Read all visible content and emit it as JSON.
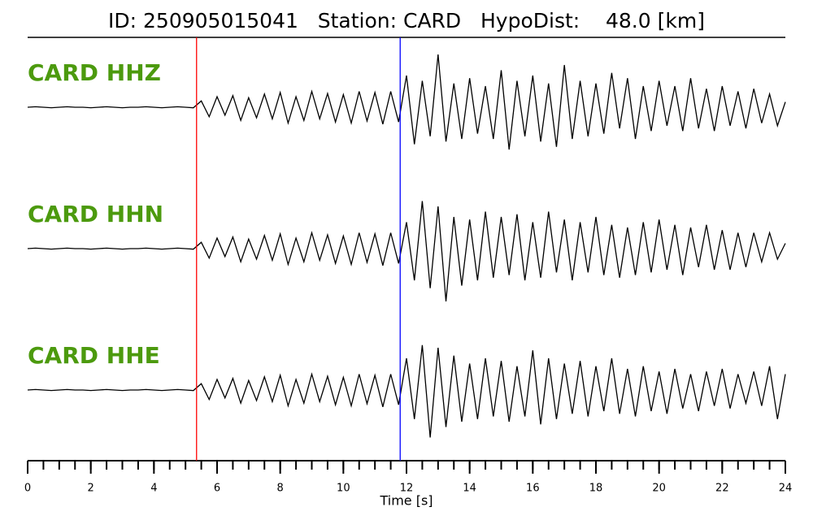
{
  "chart_data": {
    "type": "seismogram",
    "title": "ID: 250905015041   Station: CARD   HypoDist:    48.0 [km]",
    "xlabel": "Time [s]",
    "xlim": [
      0,
      24
    ],
    "xticks": [
      0,
      2,
      4,
      6,
      8,
      10,
      12,
      14,
      16,
      18,
      20,
      22,
      24
    ],
    "xminorticks": [
      0,
      0.5,
      1,
      1.5,
      2,
      2.5,
      3,
      3.5,
      4,
      4.5,
      5,
      5.5,
      6,
      6.5,
      7,
      7.5,
      8,
      8.5,
      9,
      9.5,
      10,
      10.5,
      11,
      11.5,
      12,
      12.5,
      13,
      13.5,
      14,
      14.5,
      15,
      15.5,
      16,
      16.5,
      17,
      17.5,
      18,
      18.5,
      19,
      19.5,
      20,
      20.5,
      21,
      21.5,
      22,
      22.5,
      23,
      23.5,
      24
    ],
    "label_color": "#4c9a0e",
    "picks": [
      {
        "time": 5.35,
        "color": "#ff0000"
      },
      {
        "time": 11.8,
        "color": "#0000ff"
      }
    ],
    "x": [
      0,
      0.25,
      0.5,
      0.75,
      1,
      1.25,
      1.5,
      1.75,
      2,
      2.25,
      2.5,
      2.75,
      3,
      3.25,
      3.5,
      3.75,
      4,
      4.25,
      4.5,
      4.75,
      5,
      5.25,
      5.5,
      5.75,
      6,
      6.25,
      6.5,
      6.75,
      7,
      7.25,
      7.5,
      7.75,
      8,
      8.25,
      8.5,
      8.75,
      9,
      9.25,
      9.5,
      9.75,
      10,
      10.25,
      10.5,
      10.75,
      11,
      11.25,
      11.5,
      11.75,
      12,
      12.25,
      12.5,
      12.75,
      13,
      13.25,
      13.5,
      13.75,
      14,
      14.25,
      14.5,
      14.75,
      15,
      15.25,
      15.5,
      15.75,
      16,
      16.25,
      16.5,
      16.75,
      17,
      17.25,
      17.5,
      17.75,
      18,
      18.25,
      18.5,
      18.75,
      19,
      19.25,
      19.5,
      19.75,
      20,
      20.25,
      20.5,
      20.75,
      21,
      21.25,
      21.5,
      21.75,
      22,
      22.25,
      22.5,
      22.75,
      23,
      23.25,
      23.5,
      23.75,
      24
    ],
    "series": [
      {
        "name": "CARD HHZ",
        "color": "#000000",
        "values": [
          0,
          0.01,
          0,
          -0.01,
          0,
          0.01,
          0,
          0,
          -0.01,
          0,
          0.01,
          0,
          -0.01,
          0,
          0,
          0.01,
          0,
          -0.01,
          0,
          0.01,
          0,
          -0.01,
          0.12,
          -0.18,
          0.2,
          -0.15,
          0.22,
          -0.25,
          0.18,
          -0.2,
          0.25,
          -0.22,
          0.28,
          -0.3,
          0.2,
          -0.25,
          0.3,
          -0.22,
          0.26,
          -0.28,
          0.24,
          -0.3,
          0.3,
          -0.26,
          0.28,
          -0.32,
          0.3,
          -0.28,
          0.6,
          -0.7,
          0.5,
          -0.55,
          1.0,
          -0.65,
          0.45,
          -0.6,
          0.55,
          -0.5,
          0.4,
          -0.6,
          0.7,
          -0.8,
          0.5,
          -0.55,
          0.6,
          -0.65,
          0.45,
          -0.75,
          0.8,
          -0.6,
          0.5,
          -0.55,
          0.45,
          -0.5,
          0.65,
          -0.4,
          0.55,
          -0.6,
          0.4,
          -0.45,
          0.5,
          -0.35,
          0.4,
          -0.45,
          0.55,
          -0.4,
          0.35,
          -0.45,
          0.4,
          -0.35,
          0.3,
          -0.4,
          0.35,
          -0.3,
          0.25,
          -0.35,
          0.1
        ]
      },
      {
        "name": "CARD HHN",
        "color": "#000000",
        "values": [
          0,
          0.01,
          0,
          -0.01,
          0,
          0.01,
          0,
          0,
          -0.01,
          0,
          0.01,
          0,
          -0.01,
          0,
          0,
          0.01,
          0,
          -0.01,
          0,
          0.01,
          0,
          -0.01,
          0.12,
          -0.18,
          0.2,
          -0.15,
          0.22,
          -0.25,
          0.18,
          -0.2,
          0.25,
          -0.22,
          0.28,
          -0.3,
          0.2,
          -0.25,
          0.3,
          -0.22,
          0.26,
          -0.28,
          0.24,
          -0.3,
          0.3,
          -0.26,
          0.28,
          -0.32,
          0.3,
          -0.28,
          0.5,
          -0.6,
          0.9,
          -0.75,
          0.8,
          -1.0,
          0.6,
          -0.7,
          0.55,
          -0.6,
          0.7,
          -0.55,
          0.6,
          -0.5,
          0.65,
          -0.6,
          0.5,
          -0.55,
          0.7,
          -0.45,
          0.55,
          -0.6,
          0.5,
          -0.45,
          0.6,
          -0.5,
          0.45,
          -0.55,
          0.4,
          -0.5,
          0.5,
          -0.45,
          0.55,
          -0.4,
          0.45,
          -0.5,
          0.4,
          -0.35,
          0.45,
          -0.4,
          0.35,
          -0.4,
          0.3,
          -0.35,
          0.3,
          -0.25,
          0.3,
          -0.2,
          0.1
        ]
      },
      {
        "name": "CARD HHE",
        "color": "#000000",
        "values": [
          0,
          0.01,
          0,
          -0.01,
          0,
          0.01,
          0,
          0,
          -0.01,
          0,
          0.01,
          0,
          -0.01,
          0,
          0,
          0.01,
          0,
          -0.01,
          0,
          0.01,
          0,
          -0.01,
          0.12,
          -0.18,
          0.2,
          -0.15,
          0.22,
          -0.25,
          0.18,
          -0.2,
          0.25,
          -0.22,
          0.28,
          -0.3,
          0.2,
          -0.25,
          0.3,
          -0.22,
          0.26,
          -0.28,
          0.24,
          -0.3,
          0.3,
          -0.26,
          0.28,
          -0.32,
          0.3,
          -0.28,
          0.6,
          -0.55,
          0.85,
          -0.9,
          0.8,
          -0.7,
          0.65,
          -0.6,
          0.5,
          -0.55,
          0.6,
          -0.5,
          0.55,
          -0.6,
          0.45,
          -0.5,
          0.75,
          -0.65,
          0.6,
          -0.55,
          0.5,
          -0.45,
          0.55,
          -0.5,
          0.45,
          -0.4,
          0.6,
          -0.45,
          0.4,
          -0.5,
          0.45,
          -0.4,
          0.35,
          -0.45,
          0.4,
          -0.35,
          0.3,
          -0.4,
          0.35,
          -0.3,
          0.4,
          -0.35,
          0.3,
          -0.25,
          0.35,
          -0.3,
          0.45,
          -0.55,
          0.3
        ]
      }
    ]
  }
}
